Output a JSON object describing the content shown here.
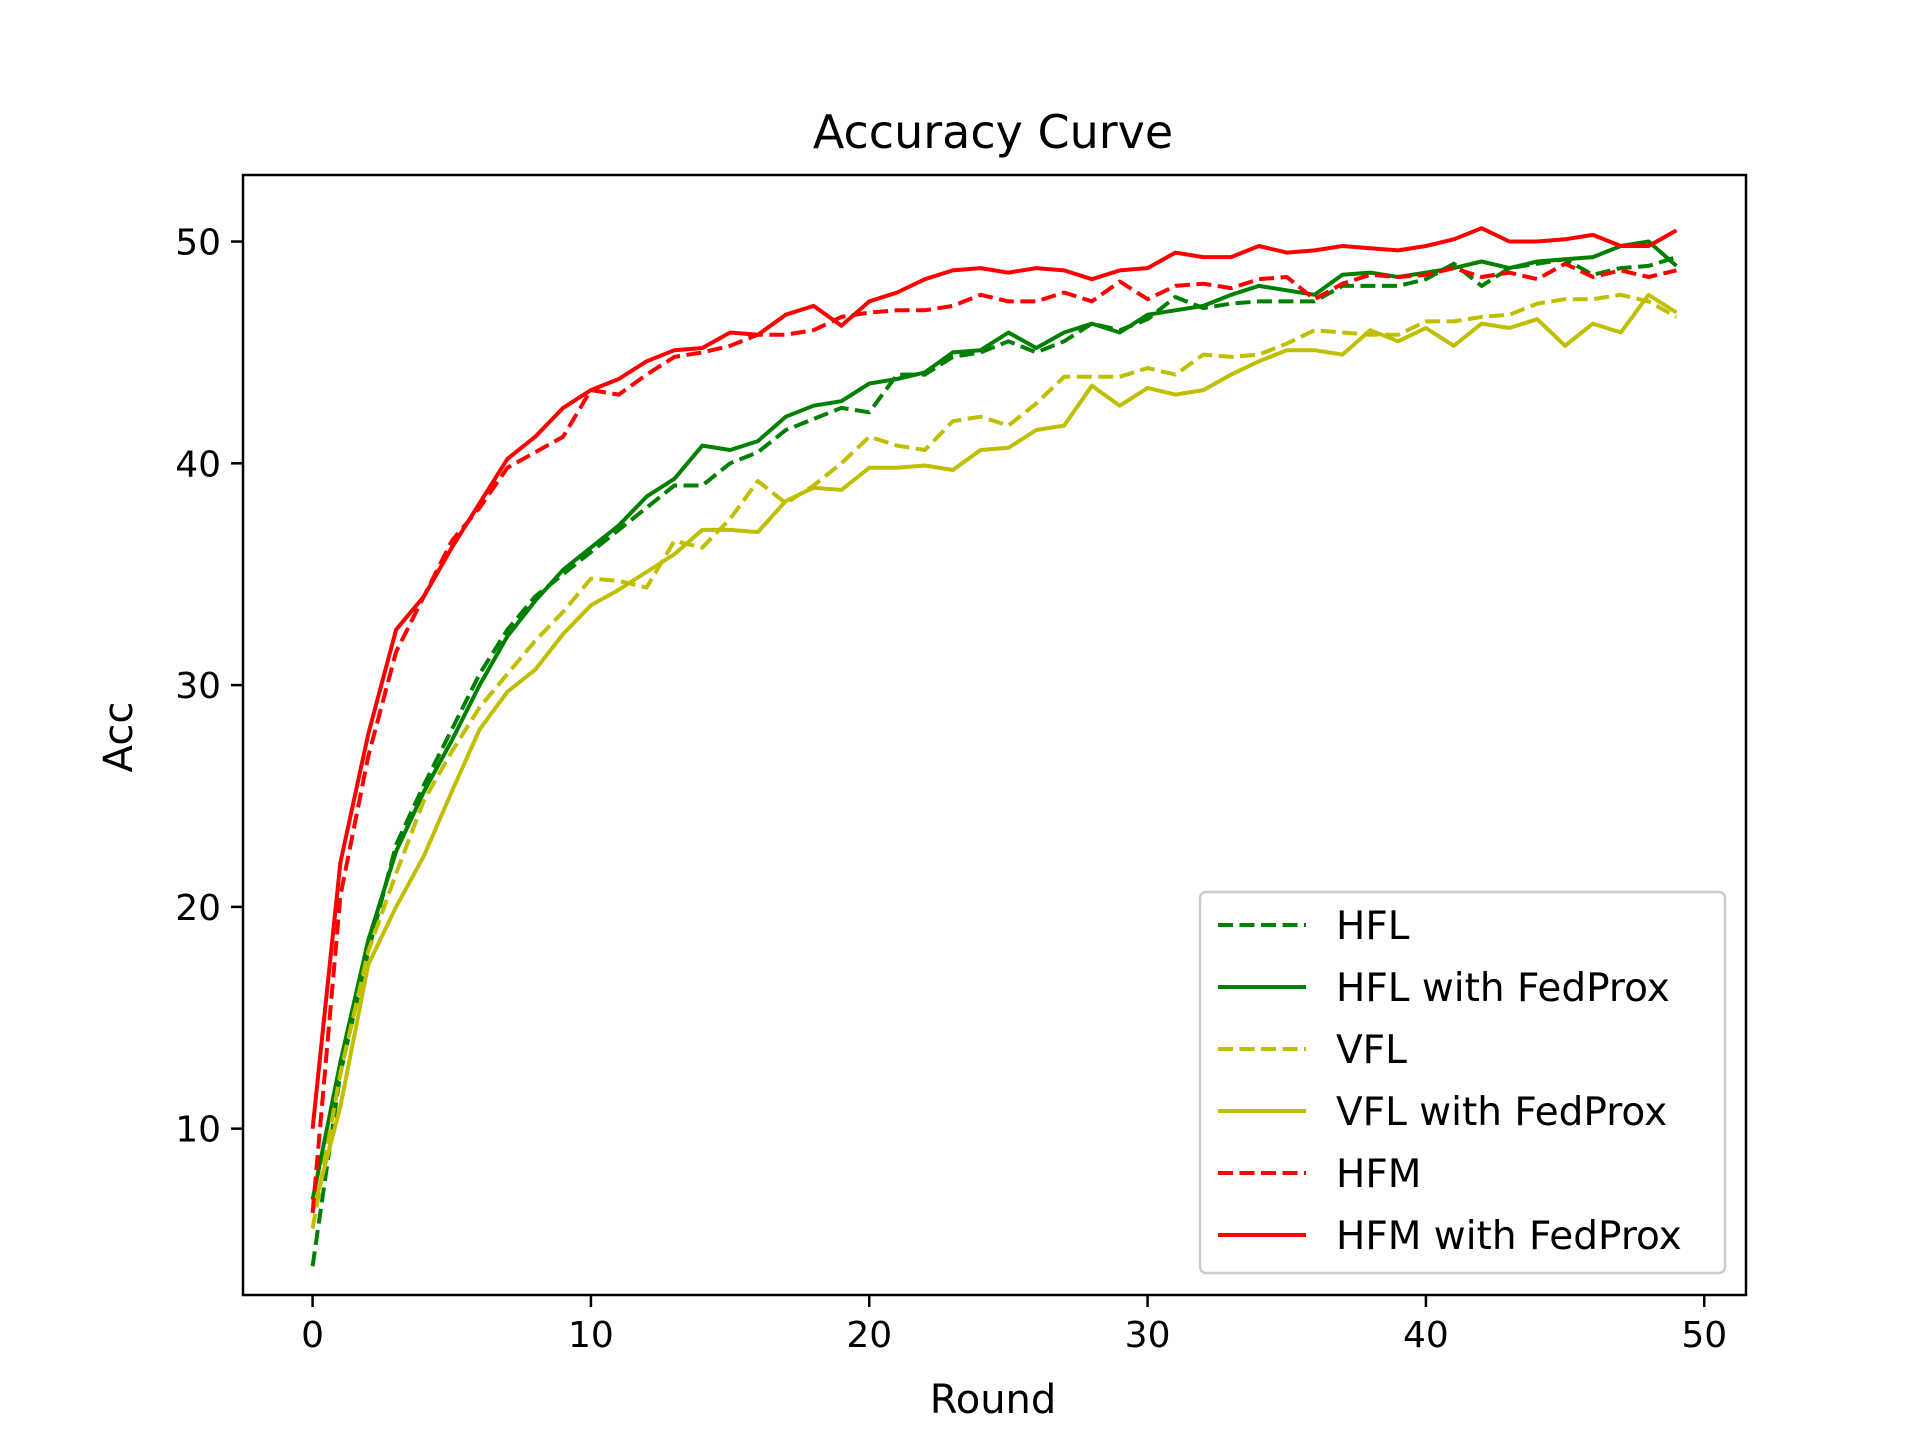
{
  "chart_data": {
    "type": "line",
    "title": "Accuracy Curve",
    "xlabel": "Round",
    "ylabel": "Acc",
    "xlim": [
      -2.5,
      51.5
    ],
    "ylim": [
      2.5,
      53.0
    ],
    "xticks": [
      0,
      10,
      20,
      30,
      40,
      50
    ],
    "yticks": [
      10,
      20,
      30,
      40,
      50
    ],
    "grid": false,
    "legend_position": "lower-right",
    "x": [
      0,
      1,
      2,
      3,
      4,
      5,
      6,
      7,
      8,
      9,
      10,
      11,
      12,
      13,
      14,
      15,
      16,
      17,
      18,
      19,
      20,
      21,
      22,
      23,
      24,
      25,
      26,
      27,
      28,
      29,
      30,
      31,
      32,
      33,
      34,
      35,
      36,
      37,
      38,
      39,
      40,
      41,
      42,
      43,
      44,
      45,
      46,
      47,
      48,
      49
    ],
    "series": [
      {
        "name": "HFL",
        "color": "#008000",
        "dash": true,
        "values": [
          3.8,
          12.5,
          18.0,
          22.8,
          25.5,
          28.0,
          30.5,
          32.5,
          34.0,
          35.0,
          36.0,
          37.0,
          38.0,
          39.0,
          39.0,
          40.0,
          40.5,
          41.5,
          42.0,
          42.5,
          42.3,
          44.0,
          44.0,
          44.8,
          45.0,
          45.5,
          45.0,
          45.5,
          46.3,
          46.0,
          46.5,
          47.5,
          47.0,
          47.2,
          47.3,
          47.3,
          47.3,
          48.0,
          48.0,
          48.0,
          48.3,
          49.0,
          48.0,
          48.8,
          49.0,
          49.2,
          48.5,
          48.8,
          48.9,
          49.3
        ]
      },
      {
        "name": "HFL with FedProx",
        "color": "#008000",
        "dash": false,
        "values": [
          6.8,
          13.0,
          18.5,
          22.5,
          25.2,
          27.5,
          30.0,
          32.2,
          33.8,
          35.2,
          36.2,
          37.2,
          38.5,
          39.3,
          40.8,
          40.6,
          41.0,
          42.1,
          42.6,
          42.8,
          43.6,
          43.8,
          44.1,
          45.0,
          45.1,
          45.9,
          45.2,
          45.9,
          46.3,
          45.9,
          46.7,
          46.9,
          47.1,
          47.6,
          48.0,
          47.8,
          47.6,
          48.5,
          48.6,
          48.4,
          48.6,
          48.8,
          49.1,
          48.8,
          49.1,
          49.2,
          49.3,
          49.8,
          50.0,
          48.9
        ]
      },
      {
        "name": "VFL",
        "color": "#bfbf00",
        "dash": true,
        "values": [
          5.5,
          12.5,
          18.0,
          21.5,
          24.8,
          27.0,
          29.0,
          30.5,
          32.0,
          33.3,
          34.8,
          34.7,
          34.4,
          36.5,
          36.2,
          37.5,
          39.2,
          38.2,
          39.0,
          40.0,
          41.2,
          40.8,
          40.6,
          41.9,
          42.1,
          41.7,
          42.7,
          43.9,
          43.9,
          43.9,
          44.3,
          44.0,
          44.9,
          44.8,
          44.9,
          45.4,
          46.0,
          45.9,
          45.8,
          45.8,
          46.4,
          46.4,
          46.6,
          46.7,
          47.2,
          47.4,
          47.4,
          47.6,
          47.3,
          46.6
        ]
      },
      {
        "name": "VFL with FedProx",
        "color": "#bfbf00",
        "dash": false,
        "values": [
          6.2,
          11.0,
          17.4,
          20.0,
          22.3,
          25.2,
          28.0,
          29.7,
          30.7,
          32.3,
          33.6,
          34.3,
          35.1,
          35.9,
          37.0,
          37.0,
          36.9,
          38.3,
          38.9,
          38.8,
          39.8,
          39.8,
          39.9,
          39.7,
          40.6,
          40.7,
          41.5,
          41.7,
          43.5,
          42.6,
          43.4,
          43.1,
          43.3,
          44.0,
          44.6,
          45.1,
          45.1,
          44.9,
          46.0,
          45.5,
          46.1,
          45.3,
          46.3,
          46.1,
          46.5,
          45.3,
          46.3,
          45.9,
          47.6,
          46.8
        ]
      },
      {
        "name": "HFM",
        "color": "#ff0000",
        "dash": true,
        "values": [
          6.2,
          20.5,
          26.8,
          31.5,
          34.0,
          36.5,
          38.0,
          39.8,
          40.5,
          41.2,
          43.3,
          43.1,
          44.0,
          44.8,
          45.0,
          45.3,
          45.8,
          45.8,
          46.0,
          46.6,
          46.8,
          46.9,
          46.9,
          47.1,
          47.6,
          47.3,
          47.3,
          47.7,
          47.3,
          48.2,
          47.4,
          48.0,
          48.1,
          47.9,
          48.3,
          48.4,
          47.4,
          48.1,
          48.5,
          48.4,
          48.5,
          48.8,
          48.4,
          48.6,
          48.3,
          49.0,
          48.4,
          48.7,
          48.4,
          48.7
        ]
      },
      {
        "name": "HFM with FedProx",
        "color": "#ff0000",
        "dash": false,
        "values": [
          10.0,
          22.0,
          27.8,
          32.5,
          34.0,
          36.2,
          38.2,
          40.2,
          41.2,
          42.5,
          43.3,
          43.8,
          44.6,
          45.1,
          45.2,
          45.9,
          45.8,
          46.7,
          47.1,
          46.2,
          47.3,
          47.7,
          48.3,
          48.7,
          48.8,
          48.6,
          48.8,
          48.7,
          48.3,
          48.7,
          48.8,
          49.5,
          49.3,
          49.3,
          49.8,
          49.5,
          49.6,
          49.8,
          49.7,
          49.6,
          49.8,
          50.1,
          50.6,
          50.0,
          50.0,
          50.1,
          50.3,
          49.8,
          49.8,
          50.5
        ]
      }
    ]
  }
}
